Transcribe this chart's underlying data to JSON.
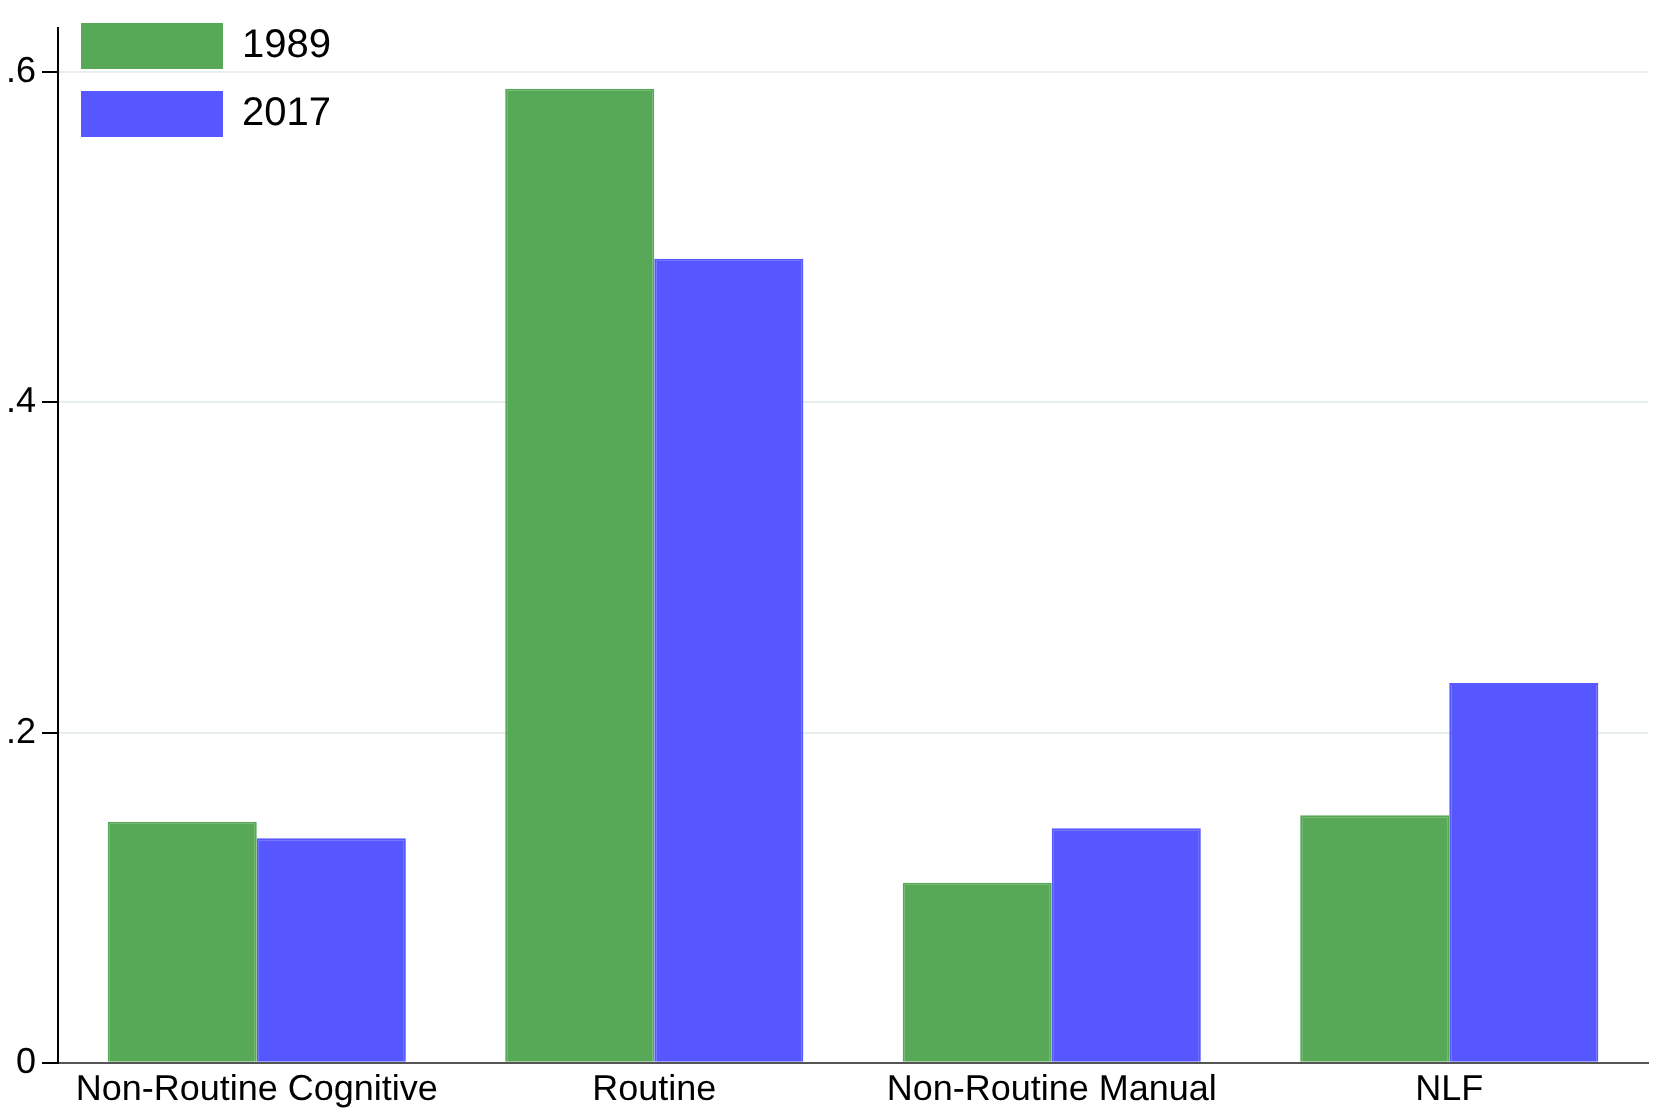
{
  "chart_data": {
    "type": "bar",
    "categories": [
      "Non-Routine Cognitive",
      "Routine",
      "Non-Routine Manual",
      "NLF"
    ],
    "series": [
      {
        "name": "1989",
        "color": "#57a957",
        "values": [
          0.146,
          0.59,
          0.109,
          0.15
        ]
      },
      {
        "name": "2017",
        "color": "#5757ff",
        "values": [
          0.136,
          0.487,
          0.142,
          0.23
        ]
      }
    ],
    "ylim": [
      0,
      0.627
    ],
    "yticks": [
      0,
      {
        "value": 0.2,
        "label": ".2"
      },
      {
        "value": 0.4,
        "label": ".4"
      },
      {
        "value": 0.6,
        "label": ".6"
      }
    ],
    "grid": "y",
    "legend": "top left"
  }
}
